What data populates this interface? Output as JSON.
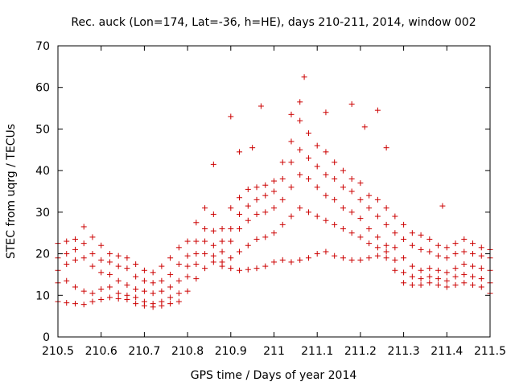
{
  "chart_data": {
    "type": "scatter",
    "title": "Rec. auck (Lon=174, Lat=-36, h=HE), days 210-211, 2014, window 002",
    "xlabel": "GPS time / Days of year 2014",
    "ylabel": "STEC from uqrg / TECUs",
    "xlim": [
      210.5,
      211.5
    ],
    "ylim": [
      0,
      70
    ],
    "xticks": [
      "210.5",
      "210.6",
      "210.7",
      "210.8",
      "210.9",
      "211",
      "211.1",
      "211.2",
      "211.3",
      "211.4",
      "211.5"
    ],
    "yticks": [
      "0",
      "10",
      "20",
      "30",
      "40",
      "50",
      "60",
      "70"
    ],
    "grid": false,
    "legend": "none",
    "color": "#cc0000",
    "marker": "plus",
    "series": [
      {
        "x": [
          210.5,
          210.52,
          210.54,
          210.56,
          210.58,
          210.6,
          210.62,
          210.64,
          210.66,
          210.68,
          210.7,
          210.72,
          210.74,
          210.76,
          210.78,
          210.8,
          210.82,
          210.84,
          210.86,
          210.88,
          210.9,
          210.92,
          210.94,
          210.96,
          210.98,
          211.0,
          211.02,
          211.04,
          211.06,
          211.08,
          211.1,
          211.12,
          211.14,
          211.16,
          211.18,
          211.2,
          211.22,
          211.24,
          211.26,
          211.28,
          211.3,
          211.32,
          211.34,
          211.36,
          211.38,
          211.4,
          211.42,
          211.44,
          211.46,
          211.48,
          211.5
        ],
        "y": [
          8.5,
          8.2,
          8.0,
          7.8,
          8.5,
          9.0,
          9.5,
          9.2,
          9.0,
          8.0,
          7.5,
          7.2,
          7.5,
          8.0,
          8.5,
          11.0,
          14.0,
          16.5,
          18.0,
          17.0,
          16.5,
          16.0,
          16.2,
          16.5,
          17.0,
          18.0,
          18.5,
          18.0,
          18.5,
          19.0,
          20.0,
          20.5,
          19.5,
          19.0,
          18.5,
          18.5,
          19.0,
          19.5,
          19.0,
          16.0,
          13.0,
          12.5,
          12.5,
          13.0,
          12.5,
          12.0,
          12.5,
          13.0,
          12.5,
          12.0,
          10.5
        ]
      },
      {
        "x": [
          210.5,
          210.52,
          210.54,
          210.56,
          210.58,
          210.6,
          210.62,
          210.64,
          210.66,
          210.68,
          210.7,
          210.72,
          210.74,
          210.76,
          210.78,
          210.8,
          210.82,
          210.84,
          210.86,
          210.88,
          210.9,
          210.92,
          210.94,
          210.96,
          210.98,
          211.0,
          211.02,
          211.04,
          211.06,
          211.08,
          211.1,
          211.12,
          211.14,
          211.16,
          211.18,
          211.2,
          211.22,
          211.24,
          211.26,
          211.28,
          211.3,
          211.32,
          211.34,
          211.36,
          211.38,
          211.4,
          211.42,
          211.44,
          211.46,
          211.48,
          211.5
        ],
        "y": [
          13.0,
          13.5,
          12.0,
          11.0,
          10.5,
          11.5,
          12.0,
          10.5,
          10.0,
          9.5,
          8.5,
          8.0,
          8.5,
          9.5,
          10.5,
          14.5,
          17.5,
          20.0,
          19.5,
          18.0,
          19.0,
          20.5,
          22.0,
          23.5,
          24.0,
          25.0,
          27.0,
          29.0,
          31.0,
          30.0,
          29.0,
          28.0,
          27.0,
          26.0,
          25.0,
          24.0,
          22.5,
          21.5,
          20.5,
          18.5,
          15.5,
          14.5,
          14.0,
          14.5,
          14.0,
          13.5,
          14.5,
          15.0,
          14.5,
          14.0,
          13.0
        ]
      },
      {
        "x": [
          210.5,
          210.52,
          210.54,
          210.56,
          210.58,
          210.6,
          210.62,
          210.64,
          210.66,
          210.68,
          210.7,
          210.72,
          210.74,
          210.76,
          210.78,
          210.8,
          210.82,
          210.84,
          210.86,
          210.88,
          210.9,
          210.92,
          210.94,
          210.96,
          210.98,
          211.0,
          211.02,
          211.04,
          211.06,
          211.08,
          211.1,
          211.12,
          211.14,
          211.16,
          211.18,
          211.2,
          211.22,
          211.24,
          211.26,
          211.28,
          211.3,
          211.32,
          211.34,
          211.36,
          211.38,
          211.4,
          211.42,
          211.44,
          211.46,
          211.48,
          211.5
        ],
        "y": [
          16.0,
          17.5,
          18.5,
          19.0,
          17.0,
          15.5,
          15.0,
          13.5,
          12.5,
          11.5,
          11.0,
          10.5,
          11.0,
          12.0,
          13.5,
          17.0,
          20.0,
          23.0,
          22.0,
          20.5,
          23.0,
          26.0,
          28.0,
          29.5,
          30.0,
          31.0,
          33.0,
          36.0,
          39.0,
          38.0,
          36.0,
          34.0,
          33.0,
          31.0,
          30.0,
          28.5,
          26.0,
          24.0,
          22.0,
          21.5,
          19.0,
          17.0,
          16.0,
          16.5,
          16.0,
          15.5,
          16.5,
          17.5,
          17.0,
          16.5,
          16.0
        ]
      },
      {
        "x": [
          210.5,
          210.52,
          210.54,
          210.56,
          210.58,
          210.6,
          210.62,
          210.64,
          210.66,
          210.68,
          210.7,
          210.72,
          210.74,
          210.76,
          210.78,
          210.8,
          210.82,
          210.84,
          210.86,
          210.88,
          210.9,
          210.92,
          210.94,
          210.96,
          210.98,
          211.0,
          211.02,
          211.04,
          211.06,
          211.08,
          211.1,
          211.12,
          211.14,
          211.16,
          211.18,
          211.2,
          211.22,
          211.24,
          211.26,
          211.28,
          211.3,
          211.32,
          211.34,
          211.36,
          211.38,
          211.4,
          211.42,
          211.44,
          211.46,
          211.48,
          211.5
        ],
        "y": [
          19.0,
          20.0,
          21.0,
          22.5,
          20.0,
          18.5,
          18.0,
          17.0,
          16.5,
          14.5,
          13.5,
          13.0,
          13.5,
          15.0,
          17.5,
          19.5,
          23.0,
          26.0,
          25.5,
          23.0,
          26.0,
          29.5,
          31.5,
          33.0,
          34.0,
          35.0,
          38.0,
          42.0,
          45.0,
          43.0,
          41.0,
          39.0,
          38.0,
          36.0,
          35.0,
          33.0,
          31.0,
          29.0,
          27.0,
          25.0,
          23.5,
          22.0,
          21.0,
          20.5,
          19.5,
          19.0,
          20.0,
          20.5,
          20.0,
          19.5,
          19.0
        ]
      },
      {
        "x": [
          210.5,
          210.52,
          210.54,
          210.56,
          210.58,
          210.6,
          210.62,
          210.64,
          210.66,
          210.68,
          210.7,
          210.72,
          210.74,
          210.76,
          210.78,
          210.8,
          210.82,
          210.84,
          210.86,
          210.88,
          210.9,
          210.92,
          210.94,
          210.96,
          210.98,
          211.0,
          211.02,
          211.04,
          211.06,
          211.08,
          211.1,
          211.12,
          211.14,
          211.16,
          211.18,
          211.2,
          211.22,
          211.24,
          211.26,
          211.28,
          211.3,
          211.32,
          211.34,
          211.36,
          211.38,
          211.4,
          211.42,
          211.44,
          211.46,
          211.48,
          211.5
        ],
        "y": [
          22.5,
          23.0,
          23.5,
          26.5,
          24.0,
          22.0,
          20.0,
          19.5,
          19.0,
          17.5,
          16.0,
          15.5,
          17.0,
          19.0,
          21.5,
          23.0,
          27.5,
          31.0,
          29.5,
          26.0,
          31.0,
          33.5,
          35.5,
          36.0,
          36.5,
          37.5,
          42.0,
          47.0,
          52.0,
          49.0,
          46.0,
          44.5,
          42.0,
          40.0,
          38.0,
          37.0,
          34.0,
          33.0,
          31.0,
          29.0,
          27.0,
          25.0,
          24.5,
          23.5,
          22.0,
          21.5,
          22.5,
          23.5,
          22.5,
          21.5,
          21.0
        ]
      },
      {
        "x": [
          210.86,
          210.9,
          210.92,
          210.95,
          210.97,
          211.04,
          211.06,
          211.07,
          211.12,
          211.18,
          211.21,
          211.24,
          211.26,
          211.39
        ],
        "y": [
          41.5,
          53.0,
          44.5,
          45.5,
          55.5,
          53.5,
          56.5,
          62.5,
          54.0,
          56.0,
          50.5,
          54.5,
          45.5,
          31.5
        ]
      }
    ]
  }
}
